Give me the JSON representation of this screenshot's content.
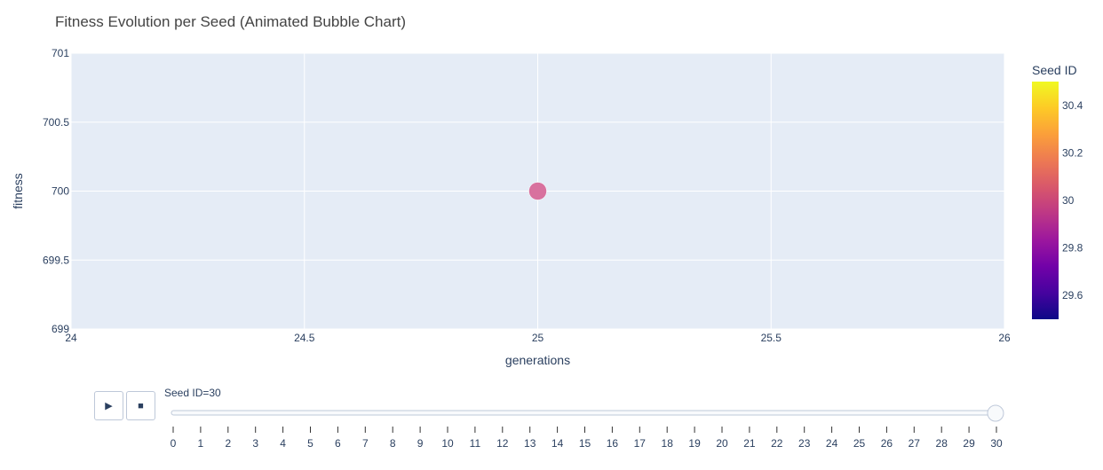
{
  "chart_data": {
    "type": "scatter",
    "title": "Fitness Evolution per Seed (Animated Bubble Chart)",
    "xlabel": "generations",
    "ylabel": "fitness",
    "xlim": [
      24,
      26
    ],
    "ylim": [
      699,
      701
    ],
    "xticks": [
      24,
      24.5,
      25,
      25.5,
      26
    ],
    "yticks": [
      699,
      699.5,
      700,
      700.5,
      701
    ],
    "grid": true,
    "points": [
      {
        "x": 25,
        "y": 700,
        "seed_id": 30
      }
    ],
    "colorbar": {
      "title": "Seed ID",
      "range": [
        29.5,
        30.5
      ],
      "ticks": [
        29.6,
        29.8,
        30,
        30.2,
        30.4
      ],
      "colorscale": [
        "#0d0887",
        "#46039f",
        "#7201a8",
        "#9c179e",
        "#bd3786",
        "#d8576b",
        "#ed7953",
        "#fb9f3a",
        "#fdca26",
        "#f0f921"
      ]
    },
    "marker_color": "#d8719e"
  },
  "animation": {
    "play_icon": "▶",
    "stop_icon": "■",
    "current_prefix": "Seed ID=",
    "current_value": "30",
    "frames": [
      "0",
      "1",
      "2",
      "3",
      "4",
      "5",
      "6",
      "7",
      "8",
      "9",
      "10",
      "11",
      "12",
      "13",
      "14",
      "15",
      "16",
      "17",
      "18",
      "19",
      "20",
      "21",
      "22",
      "23",
      "24",
      "25",
      "26",
      "27",
      "28",
      "29",
      "30"
    ],
    "current_index": 30
  },
  "colors": {
    "plot_bg": "#e5ecf6",
    "grid": "#ffffff",
    "text": "#2a3f5f",
    "title_text": "#444444"
  }
}
